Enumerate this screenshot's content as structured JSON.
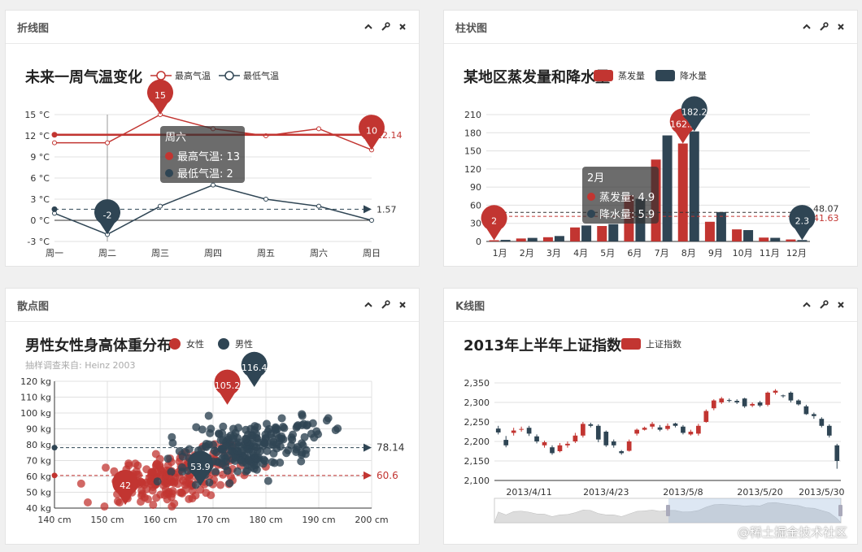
{
  "panels": {
    "line": {
      "title": "折线图"
    },
    "bar": {
      "title": "柱状图"
    },
    "scatter": {
      "title": "散点图"
    },
    "kline": {
      "title": "K线图"
    }
  },
  "colors": {
    "red": "#c23531",
    "dark": "#2f4554",
    "grid": "#e0e0e0"
  },
  "watermark": "@稀土掘金技术社区",
  "chart_data": [
    {
      "type": "line",
      "title": "未来一周气温变化",
      "categories": [
        "周一",
        "周二",
        "周三",
        "周四",
        "周五",
        "周六",
        "周日"
      ],
      "ylim": [
        -3,
        15
      ],
      "yticks": [
        -3,
        0,
        3,
        6,
        9,
        12,
        15
      ],
      "ytick_labels": [
        "-3 °C",
        "0 °C",
        "3 °C",
        "6 °C",
        "9 °C",
        "12 °C",
        "15 °C"
      ],
      "series": [
        {
          "name": "最高气温",
          "values": [
            11,
            11,
            15,
            13,
            12,
            13,
            10
          ],
          "average": 12.14,
          "average_label": "12.14",
          "markpoints": [
            {
              "label": "15",
              "index": 2
            },
            {
              "label": "10",
              "index": 6
            }
          ]
        },
        {
          "name": "最低气温",
          "values": [
            1,
            -2,
            2,
            5,
            3,
            2,
            0
          ],
          "average": 1.57,
          "average_label": "1.57",
          "markpoints": [
            {
              "label": "-2",
              "index": 1
            }
          ]
        }
      ],
      "tooltip": {
        "category": "周六",
        "rows": [
          "最高气温: 13",
          "最低气温: 2"
        ]
      },
      "grid": true,
      "legend": "top-center"
    },
    {
      "type": "bar",
      "title": "某地区蒸发量和降水量",
      "categories": [
        "1月",
        "2月",
        "3月",
        "4月",
        "5月",
        "6月",
        "7月",
        "8月",
        "9月",
        "10月",
        "11月",
        "12月"
      ],
      "ylim": [
        0,
        210
      ],
      "yticks": [
        0,
        30,
        60,
        90,
        120,
        150,
        180,
        210
      ],
      "series": [
        {
          "name": "蒸发量",
          "values": [
            2.0,
            4.9,
            7.0,
            23.2,
            25.6,
            76.7,
            135.6,
            162.2,
            32.6,
            20.0,
            6.4,
            3.3
          ],
          "average": 41.63,
          "average_label": "41.63",
          "markpoints": [
            {
              "label": "162.2",
              "index": 7
            },
            {
              "label": "2",
              "index": 0
            }
          ]
        },
        {
          "name": "降水量",
          "values": [
            2.6,
            5.9,
            9.0,
            26.4,
            28.7,
            70.7,
            175.6,
            182.2,
            48.7,
            18.8,
            6.0,
            2.3
          ],
          "average": 48.07,
          "average_label": "48.07",
          "markpoints": [
            {
              "label": "182.2",
              "index": 7
            },
            {
              "label": "2.3",
              "index": 11
            }
          ]
        }
      ],
      "tooltip": {
        "category": "2月",
        "rows": [
          "蒸发量: 4.9",
          "降水量: 5.9"
        ]
      },
      "grid": true,
      "legend": "top-center"
    },
    {
      "type": "scatter",
      "title": "男性女性身高体重分布",
      "subtitle": "抽样调查来自: Heinz  2003",
      "xlim": [
        140,
        200
      ],
      "xticks": [
        140,
        150,
        160,
        170,
        180,
        190,
        200
      ],
      "xtick_labels": [
        "140 cm",
        "150 cm",
        "160 cm",
        "170 cm",
        "180 cm",
        "190 cm",
        "200 cm"
      ],
      "ylim": [
        40,
        120
      ],
      "yticks": [
        40,
        50,
        60,
        70,
        80,
        90,
        100,
        110,
        120
      ],
      "ytick_labels": [
        "40 kg",
        "50 kg",
        "60 kg",
        "70 kg",
        "80 kg",
        "90 kg",
        "100 kg",
        "110 kg",
        "120 kg"
      ],
      "series": [
        {
          "name": "女性",
          "average": 60.6,
          "average_label": "60.6",
          "markpoints": [
            {
              "label": "105.2",
              "x": 172.7,
              "y": 105.2
            },
            {
              "label": "42",
              "x": 153.4,
              "y": 42
            }
          ]
        },
        {
          "name": "男性",
          "average": 78.14,
          "average_label": "78.14",
          "markpoints": [
            {
              "label": "116.4",
              "x": 177.8,
              "y": 116.4
            },
            {
              "label": "53.9",
              "x": 167.6,
              "y": 53.9
            }
          ]
        }
      ],
      "grid": true,
      "legend": "top-center"
    },
    {
      "type": "candlestick",
      "title": "2013年上半年上证指数",
      "ylim": [
        2100,
        2350
      ],
      "yticks": [
        2100,
        2150,
        2200,
        2250,
        2300,
        2350
      ],
      "ytick_labels": [
        "2,100",
        "2,150",
        "2,200",
        "2,250",
        "2,300",
        "2,350"
      ],
      "xtick_labels": [
        "2013/4/11",
        "2013/4/23",
        "2013/5/8",
        "2013/5/20",
        "2013/5/30"
      ],
      "series": [
        {
          "name": "上证指数"
        }
      ],
      "candles": [
        [
          2233,
          2223,
          2218,
          2240
        ],
        [
          2204,
          2190,
          2185,
          2214
        ],
        [
          2222,
          2228,
          2215,
          2235
        ],
        [
          2230,
          2232,
          2225,
          2238
        ],
        [
          2235,
          2220,
          2214,
          2240
        ],
        [
          2213,
          2200,
          2195,
          2218
        ],
        [
          2190,
          2198,
          2184,
          2202
        ],
        [
          2185,
          2170,
          2166,
          2190
        ],
        [
          2175,
          2190,
          2172,
          2196
        ],
        [
          2190,
          2194,
          2184,
          2200
        ],
        [
          2200,
          2215,
          2196,
          2222
        ],
        [
          2215,
          2245,
          2210,
          2250
        ],
        [
          2244,
          2240,
          2236,
          2248
        ],
        [
          2240,
          2205,
          2198,
          2244
        ],
        [
          2225,
          2190,
          2186,
          2228
        ],
        [
          2200,
          2190,
          2184,
          2205
        ],
        [
          2175,
          2170,
          2166,
          2178
        ],
        [
          2176,
          2200,
          2174,
          2205
        ],
        [
          2220,
          2230,
          2215,
          2233
        ],
        [
          2230,
          2235,
          2228,
          2238
        ],
        [
          2238,
          2245,
          2232,
          2250
        ],
        [
          2236,
          2230,
          2226,
          2242
        ],
        [
          2232,
          2240,
          2228,
          2246
        ],
        [
          2246,
          2240,
          2236,
          2248
        ],
        [
          2238,
          2222,
          2218,
          2242
        ],
        [
          2218,
          2225,
          2215,
          2230
        ],
        [
          2220,
          2240,
          2215,
          2245
        ],
        [
          2250,
          2278,
          2248,
          2282
        ],
        [
          2285,
          2305,
          2280,
          2308
        ],
        [
          2300,
          2310,
          2296,
          2314
        ],
        [
          2306,
          2304,
          2300,
          2310
        ],
        [
          2304,
          2300,
          2296,
          2308
        ],
        [
          2310,
          2290,
          2286,
          2312
        ],
        [
          2292,
          2296,
          2288,
          2300
        ],
        [
          2300,
          2292,
          2288,
          2304
        ],
        [
          2294,
          2325,
          2290,
          2328
        ],
        [
          2325,
          2330,
          2320,
          2334
        ],
        [
          2318,
          2316,
          2312,
          2320
        ],
        [
          2325,
          2305,
          2300,
          2328
        ],
        [
          2305,
          2295,
          2292,
          2308
        ],
        [
          2290,
          2270,
          2268,
          2294
        ],
        [
          2270,
          2265,
          2258,
          2274
        ],
        [
          2258,
          2240,
          2236,
          2262
        ],
        [
          2240,
          2215,
          2210,
          2244
        ],
        [
          2190,
          2150,
          2130,
          2194
        ]
      ],
      "grid": true,
      "legend": "top-center"
    }
  ]
}
